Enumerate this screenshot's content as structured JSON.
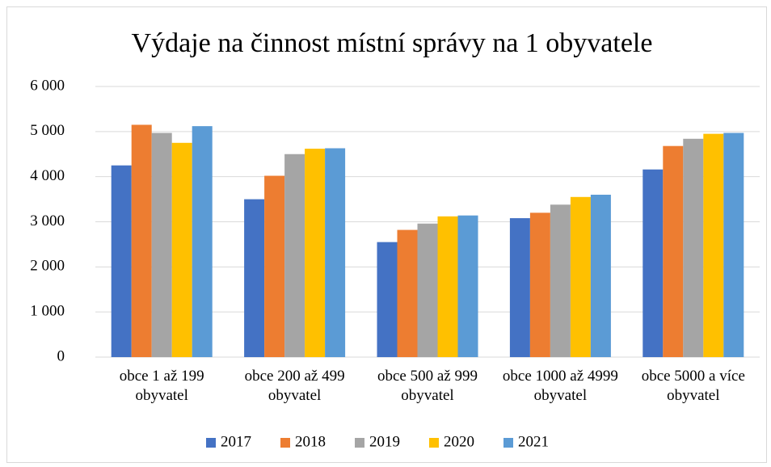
{
  "chart_data": {
    "type": "bar",
    "title": "Výdaje na činnost místní správy na 1 obyvatele",
    "categories": [
      "obce 1 až 199 obyvatel",
      "obce 200 až 499 obyvatel",
      "obce 500 až 999 obyvatel",
      "obce 1000 až 4999 obyvatel",
      "obce 5000 a více obyvatel"
    ],
    "series": [
      {
        "name": "2017",
        "color": "#4472c4",
        "values": [
          4250,
          3500,
          2550,
          3080,
          4160
        ]
      },
      {
        "name": "2018",
        "color": "#ed7d31",
        "values": [
          5150,
          4020,
          2820,
          3200,
          4680
        ]
      },
      {
        "name": "2019",
        "color": "#a5a5a5",
        "values": [
          4970,
          4500,
          2960,
          3380,
          4840
        ]
      },
      {
        "name": "2020",
        "color": "#ffc000",
        "values": [
          4750,
          4620,
          3120,
          3550,
          4950
        ]
      },
      {
        "name": "2021",
        "color": "#5b9bd5",
        "values": [
          5120,
          4630,
          3140,
          3600,
          4970
        ]
      }
    ],
    "ylim": [
      0,
      6000
    ],
    "yticks": [
      0,
      {
        "value": 1000,
        "label": "1 000"
      },
      {
        "value": 2000,
        "label": "2 000"
      },
      {
        "value": 3000,
        "label": "3 000"
      },
      {
        "value": 4000,
        "label": "4 000"
      },
      {
        "value": 5000,
        "label": "5 000"
      },
      {
        "value": 6000,
        "label": "6 000"
      }
    ],
    "grid": true,
    "legend": "bottom"
  }
}
